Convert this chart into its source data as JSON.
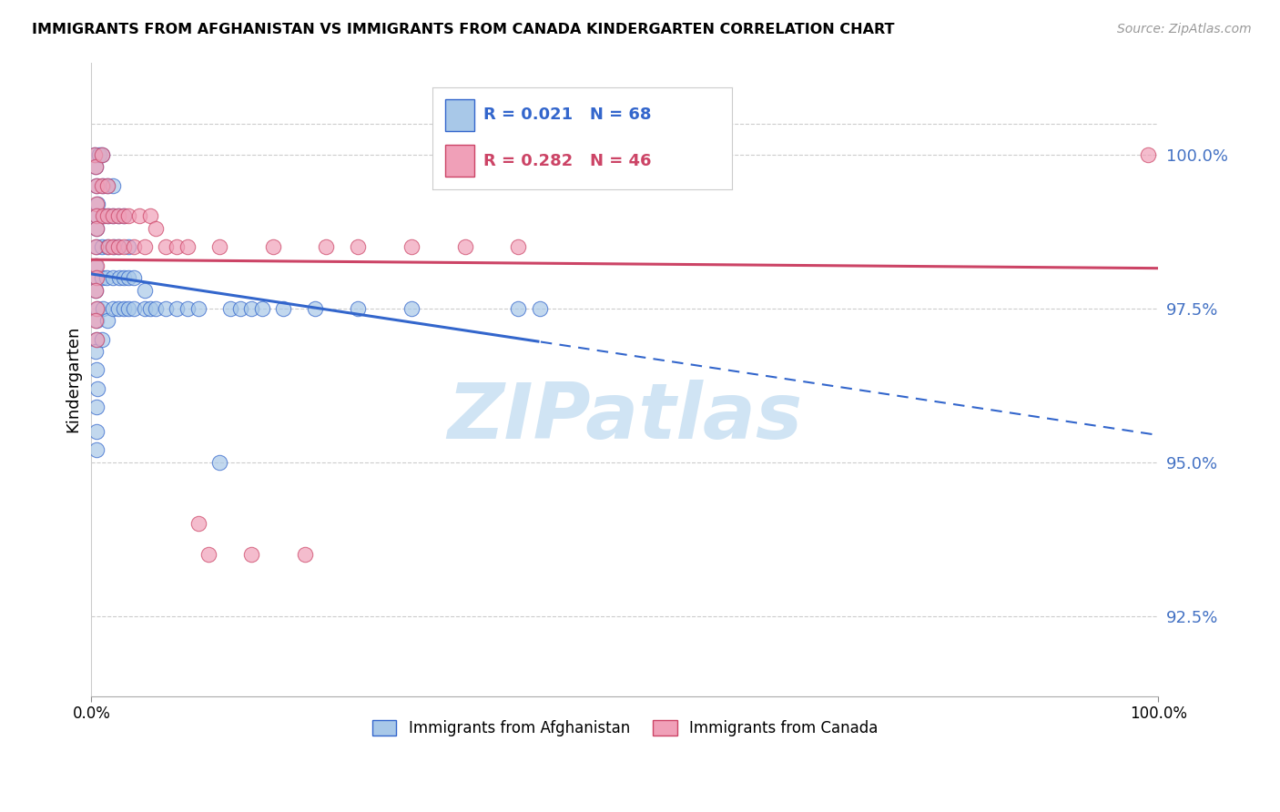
{
  "title": "IMMIGRANTS FROM AFGHANISTAN VS IMMIGRANTS FROM CANADA KINDERGARTEN CORRELATION CHART",
  "source": "Source: ZipAtlas.com",
  "ylabel": "Kindergarten",
  "xlim": [
    0.0,
    100.0
  ],
  "ylim": [
    91.2,
    101.5
  ],
  "afghanistan_R": 0.021,
  "afghanistan_N": 68,
  "canada_R": 0.282,
  "canada_N": 46,
  "afghanistan_color": "#a8c8e8",
  "canada_color": "#f0a0b8",
  "trend_afghanistan_color": "#3366cc",
  "trend_canada_color": "#cc4466",
  "y_ticks": [
    92.5,
    95.0,
    97.5,
    100.0
  ],
  "watermark_text": "ZIPatlas",
  "watermark_color": "#d0e4f4",
  "background_color": "#ffffff",
  "grid_color": "#cccccc",
  "y_label_color": "#4472c4",
  "legend_box_color": "#f0f4fa",
  "afghanistan_x": [
    0.3,
    0.4,
    0.5,
    0.6,
    0.7,
    0.5,
    0.5,
    0.5,
    0.4,
    0.5,
    0.4,
    0.6,
    0.5,
    0.5,
    0.4,
    0.5,
    0.6,
    0.5,
    0.5,
    0.5,
    1.0,
    1.1,
    1.2,
    1.0,
    1.0,
    1.1,
    1.0,
    1.5,
    1.6,
    1.5,
    1.4,
    1.5,
    2.0,
    2.0,
    2.1,
    2.0,
    2.0,
    2.5,
    2.5,
    2.6,
    2.5,
    3.0,
    3.0,
    3.0,
    3.5,
    3.5,
    3.5,
    4.0,
    4.0,
    5.0,
    5.0,
    5.5,
    6.0,
    7.0,
    8.0,
    9.0,
    10.0,
    12.0,
    13.0,
    14.0,
    15.0,
    16.0,
    18.0,
    21.0,
    25.0,
    30.0,
    40.0,
    42.0
  ],
  "afghanistan_y": [
    100.0,
    99.8,
    99.5,
    99.2,
    100.0,
    99.0,
    98.8,
    98.5,
    98.2,
    98.0,
    97.8,
    97.5,
    97.3,
    97.0,
    96.8,
    96.5,
    96.2,
    95.9,
    95.5,
    95.2,
    100.0,
    99.5,
    99.0,
    98.5,
    98.0,
    97.5,
    97.0,
    99.5,
    99.0,
    98.5,
    98.0,
    97.3,
    99.5,
    99.0,
    98.5,
    98.0,
    97.5,
    99.0,
    98.5,
    98.0,
    97.5,
    99.0,
    98.0,
    97.5,
    98.5,
    98.0,
    97.5,
    98.0,
    97.5,
    97.8,
    97.5,
    97.5,
    97.5,
    97.5,
    97.5,
    97.5,
    97.5,
    95.0,
    97.5,
    97.5,
    97.5,
    97.5,
    97.5,
    97.5,
    97.5,
    97.5,
    97.5,
    97.5
  ],
  "canada_x": [
    0.3,
    0.4,
    0.5,
    0.5,
    0.5,
    0.5,
    0.4,
    0.5,
    0.5,
    0.4,
    0.5,
    0.4,
    0.5,
    1.0,
    1.0,
    1.1,
    1.5,
    1.5,
    1.6,
    2.0,
    2.0,
    2.5,
    2.5,
    3.0,
    3.0,
    3.5,
    4.0,
    4.5,
    5.0,
    5.5,
    6.0,
    7.0,
    8.0,
    9.0,
    10.0,
    11.0,
    12.0,
    15.0,
    17.0,
    20.0,
    22.0,
    25.0,
    30.0,
    35.0,
    40.0,
    99.0
  ],
  "canada_y": [
    100.0,
    99.8,
    99.5,
    99.2,
    99.0,
    98.8,
    98.5,
    98.2,
    98.0,
    97.8,
    97.5,
    97.3,
    97.0,
    100.0,
    99.5,
    99.0,
    99.5,
    99.0,
    98.5,
    99.0,
    98.5,
    99.0,
    98.5,
    99.0,
    98.5,
    99.0,
    98.5,
    99.0,
    98.5,
    99.0,
    98.8,
    98.5,
    98.5,
    98.5,
    94.0,
    93.5,
    98.5,
    93.5,
    98.5,
    93.5,
    98.5,
    98.5,
    98.5,
    98.5,
    98.5,
    100.0
  ]
}
